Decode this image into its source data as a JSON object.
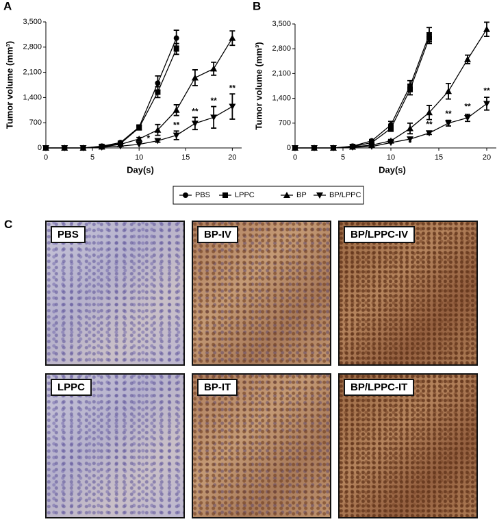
{
  "chart_data": [
    {
      "type": "line",
      "panel": "A",
      "y_label": "Tumor volume (mm³)",
      "x_label": "Day(s)",
      "xlim": [
        0,
        21
      ],
      "xticks": [
        0,
        5,
        10,
        15,
        20
      ],
      "ylim": [
        0,
        3500
      ],
      "yticks": [
        0,
        700,
        {
          "value": 1400,
          "label": "1,400"
        },
        {
          "value": 2100,
          "label": "2,100"
        },
        {
          "value": 2800,
          "label": "2,800"
        },
        {
          "value": 3500,
          "label": "3,500"
        }
      ],
      "series": [
        {
          "name": "PBS",
          "marker": "circle",
          "color": "#000000",
          "x": [
            0,
            2,
            4,
            6,
            8,
            10,
            12,
            14
          ],
          "values": [
            0,
            0,
            0,
            50,
            150,
            580,
            1800,
            3050
          ],
          "errors": [
            null,
            null,
            null,
            null,
            40,
            60,
            200,
            220
          ]
        },
        {
          "name": "LPPC",
          "marker": "square",
          "color": "#000000",
          "x": [
            0,
            2,
            4,
            6,
            8,
            10,
            12,
            14
          ],
          "values": [
            0,
            0,
            0,
            40,
            120,
            560,
            1550,
            2750
          ],
          "errors": [
            null,
            null,
            null,
            null,
            40,
            60,
            150,
            150
          ]
        },
        {
          "name": "BP",
          "marker": "triangle-up",
          "color": "#000000",
          "x": [
            0,
            2,
            4,
            6,
            8,
            10,
            12,
            14,
            16,
            18,
            20
          ],
          "values": [
            0,
            0,
            0,
            30,
            100,
            250,
            500,
            1050,
            1950,
            2200,
            3050
          ],
          "errors": [
            null,
            null,
            null,
            null,
            null,
            40,
            150,
            150,
            220,
            180,
            200
          ]
        },
        {
          "name": "BP/LPPC",
          "marker": "triangle-down",
          "color": "#000000",
          "x": [
            0,
            2,
            4,
            6,
            8,
            10,
            12,
            14,
            16,
            18,
            20
          ],
          "values": [
            0,
            0,
            0,
            20,
            50,
            100,
            200,
            350,
            680,
            850,
            1150
          ],
          "errors": [
            null,
            null,
            null,
            null,
            null,
            null,
            40,
            120,
            170,
            300,
            350
          ]
        }
      ],
      "annotations": [
        {
          "x": 11,
          "y": 250,
          "text": "*"
        },
        {
          "x": 12,
          "y": 400,
          "text": "*"
        },
        {
          "x": 14,
          "y": 620,
          "text": "**"
        },
        {
          "x": 16,
          "y": 1000,
          "text": "**"
        },
        {
          "x": 18,
          "y": 1300,
          "text": "**"
        },
        {
          "x": 20,
          "y": 1650,
          "text": "**"
        }
      ]
    },
    {
      "type": "line",
      "panel": "B",
      "y_label": "Tumor volume (mm³)",
      "x_label": "Day(s)",
      "xlim": [
        0,
        21
      ],
      "xticks": [
        0,
        5,
        10,
        15,
        20
      ],
      "ylim": [
        0,
        3500
      ],
      "yticks": [
        0,
        700,
        {
          "value": 1400,
          "label": "1,400"
        },
        {
          "value": 2100,
          "label": "2,100"
        },
        {
          "value": 2800,
          "label": "2,800"
        },
        {
          "value": 3500,
          "label": "3,500"
        }
      ],
      "series": [
        {
          "name": "PBS",
          "marker": "circle",
          "color": "#000000",
          "x": [
            0,
            2,
            4,
            6,
            8,
            10,
            12,
            14
          ],
          "values": [
            0,
            0,
            0,
            50,
            200,
            650,
            1750,
            3200
          ],
          "errors": [
            null,
            null,
            null,
            null,
            40,
            100,
            150,
            200
          ]
        },
        {
          "name": "LPPC",
          "marker": "square",
          "color": "#000000",
          "x": [
            0,
            2,
            4,
            6,
            8,
            10,
            12,
            14
          ],
          "values": [
            0,
            0,
            0,
            40,
            150,
            550,
            1650,
            3100
          ],
          "errors": [
            null,
            null,
            null,
            null,
            40,
            80,
            150,
            150
          ]
        },
        {
          "name": "BP",
          "marker": "triangle-up",
          "color": "#000000",
          "x": [
            0,
            2,
            4,
            6,
            8,
            10,
            12,
            14,
            16,
            18,
            20
          ],
          "values": [
            0,
            0,
            0,
            30,
            80,
            200,
            550,
            1000,
            1600,
            2500,
            3350
          ],
          "errors": [
            null,
            null,
            null,
            null,
            null,
            40,
            150,
            200,
            220,
            120,
            200
          ]
        },
        {
          "name": "BP/LPPC",
          "marker": "triangle-down",
          "color": "#000000",
          "x": [
            0,
            2,
            4,
            6,
            8,
            10,
            12,
            14,
            16,
            18,
            20
          ],
          "values": [
            0,
            0,
            0,
            20,
            40,
            150,
            250,
            420,
            700,
            850,
            1250
          ],
          "errors": [
            null,
            null,
            null,
            null,
            null,
            null,
            null,
            40,
            80,
            100,
            180
          ]
        }
      ],
      "annotations": [
        {
          "x": 12,
          "y": 120,
          "text": "*"
        },
        {
          "x": 14,
          "y": 650,
          "text": "**"
        },
        {
          "x": 16,
          "y": 950,
          "text": "**"
        },
        {
          "x": 18,
          "y": 1150,
          "text": "**"
        },
        {
          "x": 20,
          "y": 1600,
          "text": "**"
        }
      ]
    }
  ],
  "histology": {
    "panel": "C",
    "images": [
      {
        "label": "PBS"
      },
      {
        "label": "BP-IV"
      },
      {
        "label": "BP/LPPC-IV"
      },
      {
        "label": "LPPC"
      },
      {
        "label": "BP-IT"
      },
      {
        "label": "BP/LPPC-IT"
      }
    ]
  }
}
